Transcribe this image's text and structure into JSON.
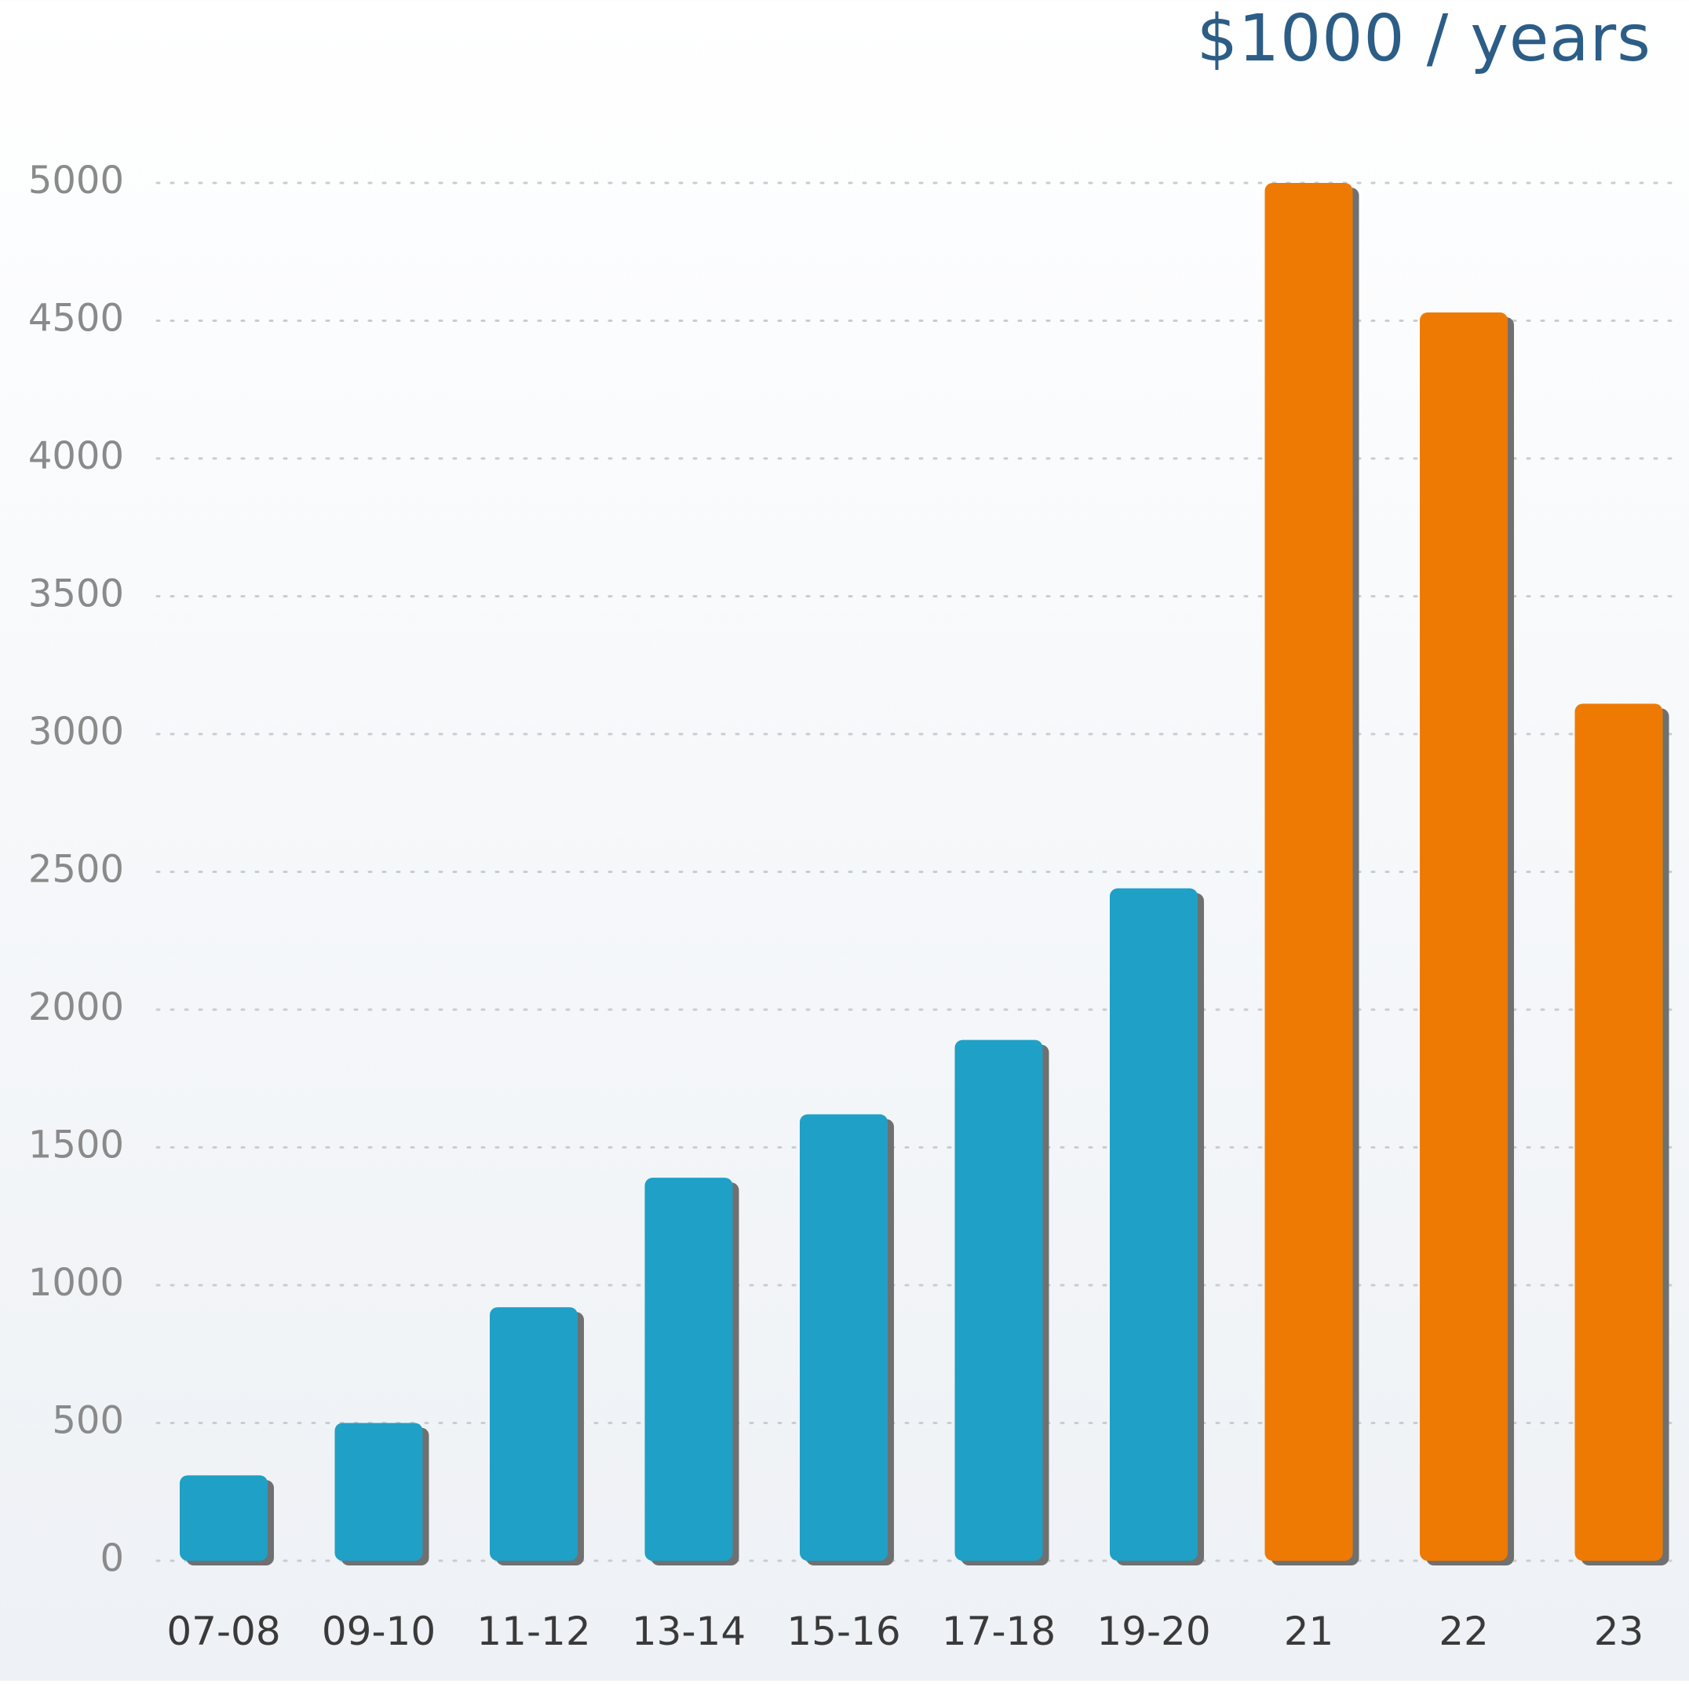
{
  "chart_data": {
    "type": "bar",
    "unit_label": "$1000 / years",
    "categories": [
      "07-08",
      "09-10",
      "11-12",
      "13-14",
      "15-16",
      "17-18",
      "19-20",
      "21",
      "22",
      "23"
    ],
    "values": [
      310,
      500,
      920,
      1390,
      1620,
      1890,
      2440,
      5000,
      4530,
      3110
    ],
    "bar_colors": [
      "#1fa0c6",
      "#1fa0c6",
      "#1fa0c6",
      "#1fa0c6",
      "#1fa0c6",
      "#1fa0c6",
      "#1fa0c6",
      "#ee7a03",
      "#ee7a03",
      "#ee7a03"
    ],
    "shadow_color": "#707070",
    "ylim": [
      0,
      5000
    ],
    "yticks": [
      0,
      500,
      1000,
      1500,
      2000,
      2500,
      3000,
      3500,
      4000,
      4500,
      5000
    ],
    "grid": true,
    "grid_style": "dotted",
    "tick_label_color": "#8a8a8a",
    "category_label_color": "#3a3a3a",
    "xlabel": "",
    "ylabel": ""
  }
}
